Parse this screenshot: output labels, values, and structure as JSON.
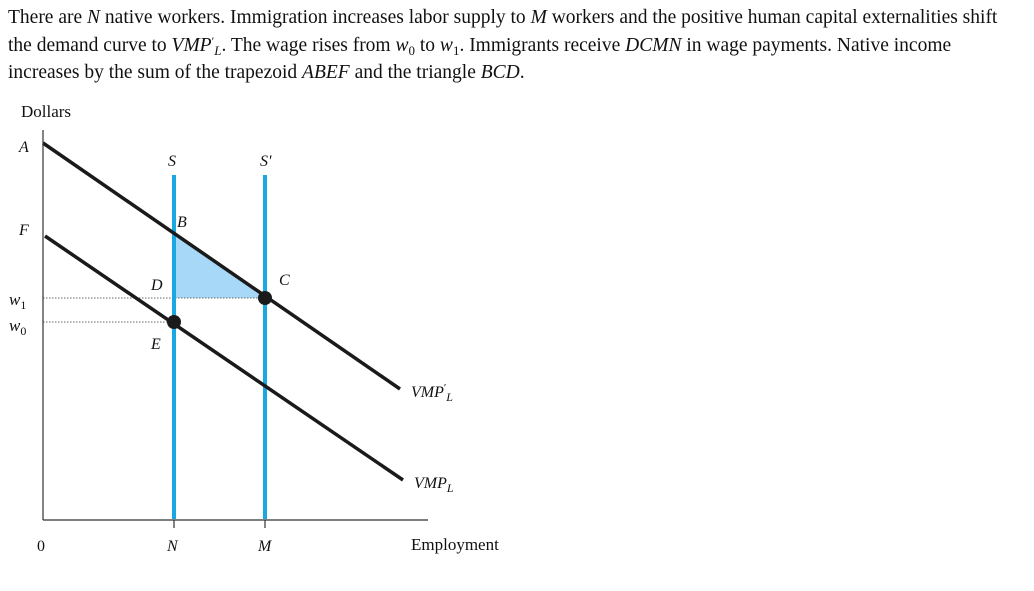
{
  "caption": {
    "t1": "There are ",
    "N": "N",
    "t2": " native workers. Immigration increases labor supply to ",
    "M": "M",
    "t3": " workers and the positive human capital externalities shift the demand curve to ",
    "vmp": "VMP",
    "vmp_prime": "′",
    "vmp_sub": "L",
    "t4": ". The wage rises from ",
    "w": "w",
    "w0_sub": "0",
    "t5": " to ",
    "w1_sub": "1",
    "t6": ". Immigrants receive ",
    "DCMN": "DCMN",
    "t7": " in wage payments. Native income increases by the sum of the trapezoid ",
    "ABEF": "ABEF",
    "t8": " and the triangle ",
    "BCD": "BCD",
    "t9": "."
  },
  "diagram": {
    "y_axis_label": "Dollars",
    "x_axis_label": "Employment",
    "origin_label": "0",
    "intercepts": {
      "A": "A",
      "F": "F"
    },
    "wage_labels": {
      "w1_base": "w",
      "w1_sub": "1",
      "w0_base": "w",
      "w0_sub": "0"
    },
    "supply_labels": {
      "S": "S",
      "S_prime": "S'"
    },
    "x_tick_labels": {
      "N": "N",
      "M": "M"
    },
    "points": {
      "B": "B",
      "C": "C",
      "D": "D",
      "E": "E"
    },
    "demand_labels": {
      "new_base": "VMP",
      "new_prime": "′",
      "new_sub": "L",
      "old_base": "VMP",
      "old_sub": "L"
    },
    "colors": {
      "supply_line": "#1aa8e0",
      "shaded_triangle": "#a8d8f8",
      "demand_line": "#1a1a1a",
      "axis": "#333333",
      "guide": "#666666"
    }
  }
}
